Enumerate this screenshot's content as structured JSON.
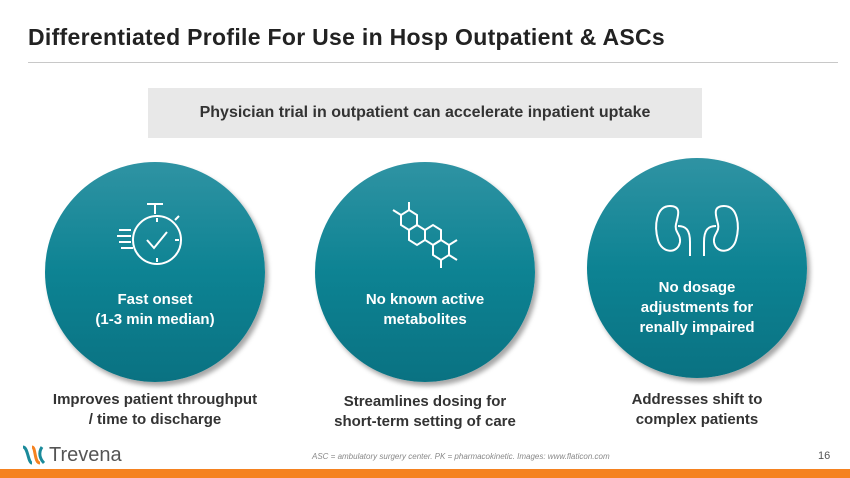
{
  "title": "Differentiated Profile For Use in Hosp Outpatient & ASCs",
  "banner": "Physician trial in outpatient can accelerate inpatient uptake",
  "circles": [
    {
      "icon": "stopwatch-check-icon",
      "line1": "Fast onset",
      "line2": "(1-3 min median)",
      "caption1": "Improves patient throughput",
      "caption2": "/ time to discharge"
    },
    {
      "icon": "molecule-icon",
      "line1": "No known active",
      "line2": "metabolites",
      "caption1": "Streamlines dosing for",
      "caption2": "short-term setting of care"
    },
    {
      "icon": "kidneys-icon",
      "line1": "No dosage",
      "line2": "adjustments for",
      "line3": "renally impaired",
      "caption1": "Addresses shift to",
      "caption2": "complex patients"
    }
  ],
  "footer": {
    "logo": "Trevena",
    "note": "ASC = ambulatory surgery center. PK = pharmacokinetic. Images: www.flaticon.com",
    "page": "16"
  },
  "colors": {
    "teal": "#0d8393",
    "orange": "#f58220"
  }
}
